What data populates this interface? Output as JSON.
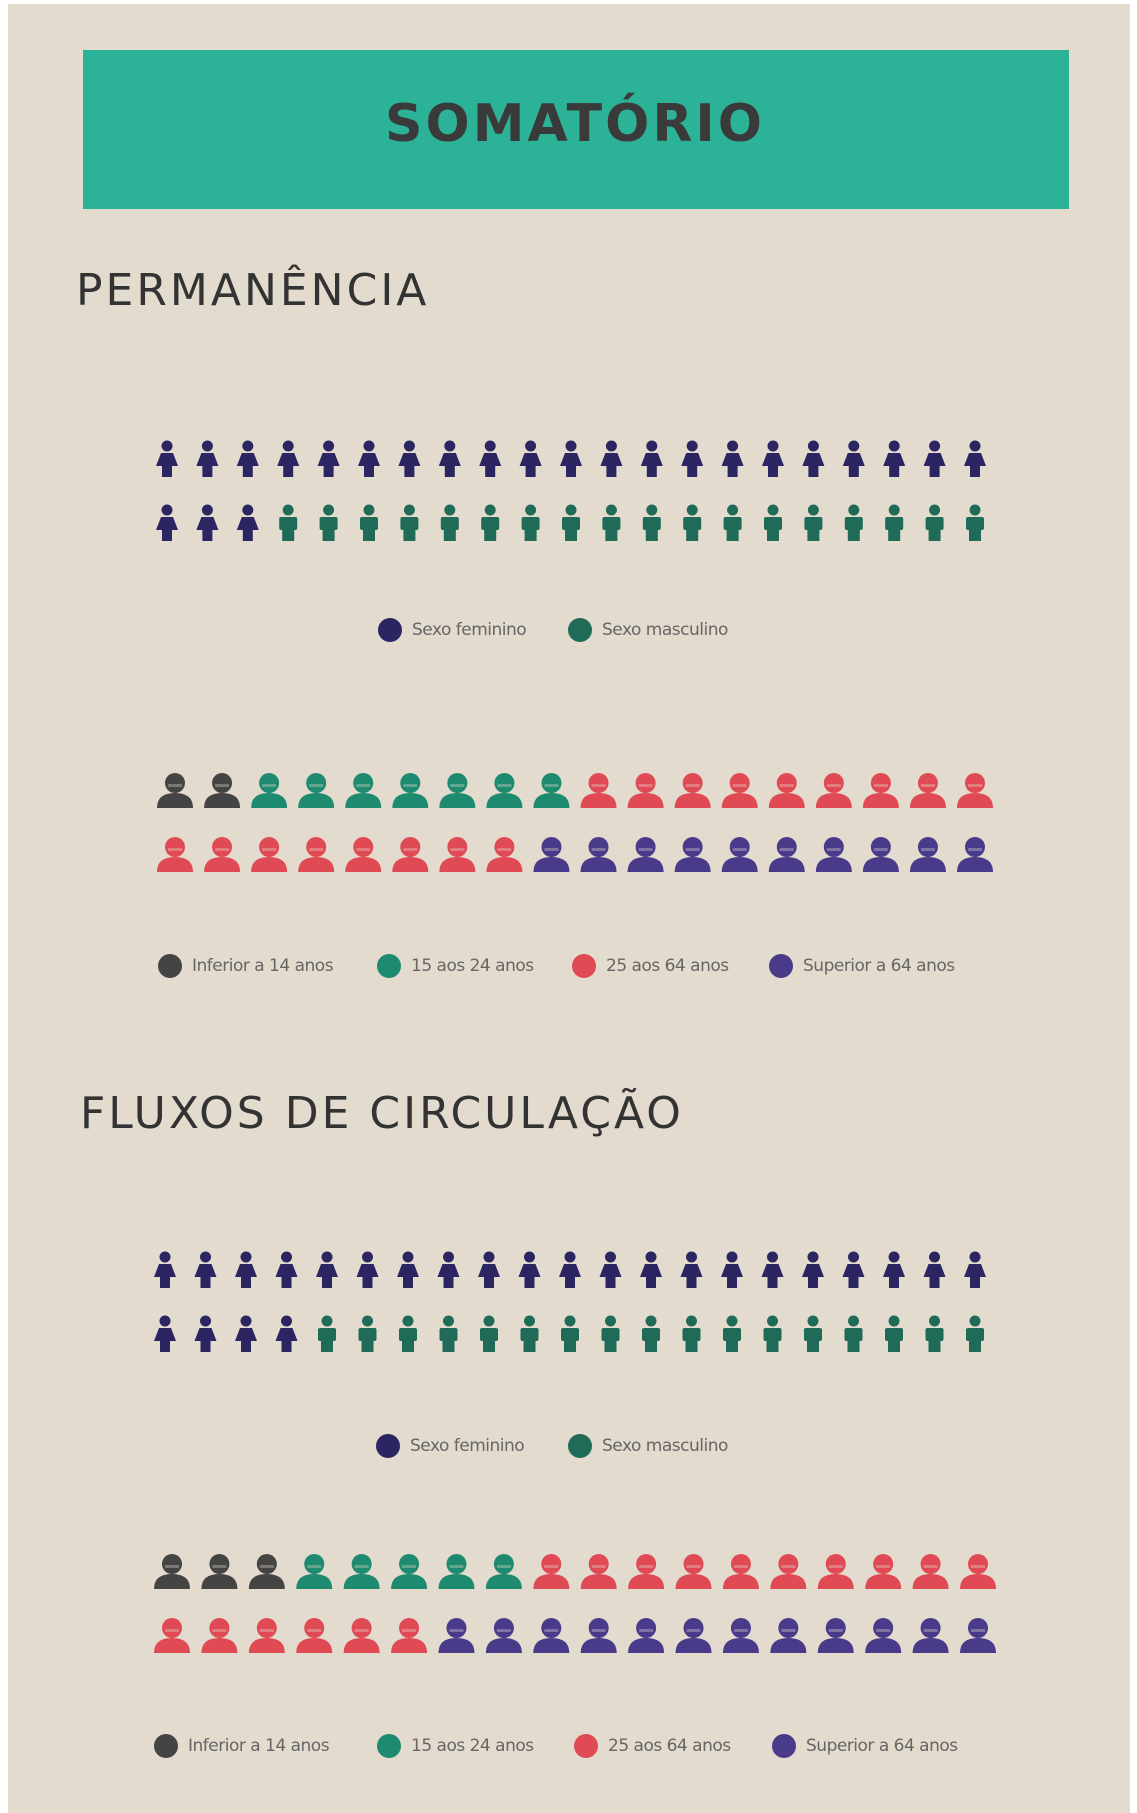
{
  "title": "SOMATÓRIO",
  "sections": [
    {
      "heading": "PERMANÊNCIA"
    },
    {
      "heading": "FLUXOS DE CIRCULAÇÃO"
    }
  ],
  "chart_data": [
    {
      "type": "pictogram",
      "series": [
        {
          "name": "Sexo feminino",
          "color": "#2b2662",
          "icon": "female",
          "value": 24
        },
        {
          "name": "Sexo masculino",
          "color": "#1f6b58",
          "icon": "male",
          "value": 18
        }
      ]
    },
    {
      "type": "pictogram",
      "series": [
        {
          "name": "Inferior a 14 anos",
          "color": "#444444",
          "icon": "head",
          "value": 2
        },
        {
          "name": "15 aos 24 anos",
          "color": "#1e8a6f",
          "icon": "head",
          "value": 7
        },
        {
          "name": "25 aos 64 anos",
          "color": "#e04a55",
          "icon": "head",
          "value": 17
        },
        {
          "name": "Superior a 64 anos",
          "color": "#4a3a8a",
          "icon": "head",
          "value": 10
        }
      ]
    },
    {
      "type": "pictogram",
      "series": [
        {
          "name": "Sexo feminino",
          "color": "#2b2662",
          "icon": "female",
          "value": 25
        },
        {
          "name": "Sexo masculino",
          "color": "#1f6b58",
          "icon": "male",
          "value": 17
        }
      ]
    },
    {
      "type": "pictogram",
      "series": [
        {
          "name": "Inferior a 14 anos",
          "color": "#444444",
          "icon": "head",
          "value": 3
        },
        {
          "name": "15 aos 24 anos",
          "color": "#1e8a6f",
          "icon": "head",
          "value": 5
        },
        {
          "name": "25 aos 64 anos",
          "color": "#e04a55",
          "icon": "head",
          "value": 16
        },
        {
          "name": "Superior a 64 anos",
          "color": "#4a3a8a",
          "icon": "head",
          "value": 12
        }
      ]
    }
  ]
}
